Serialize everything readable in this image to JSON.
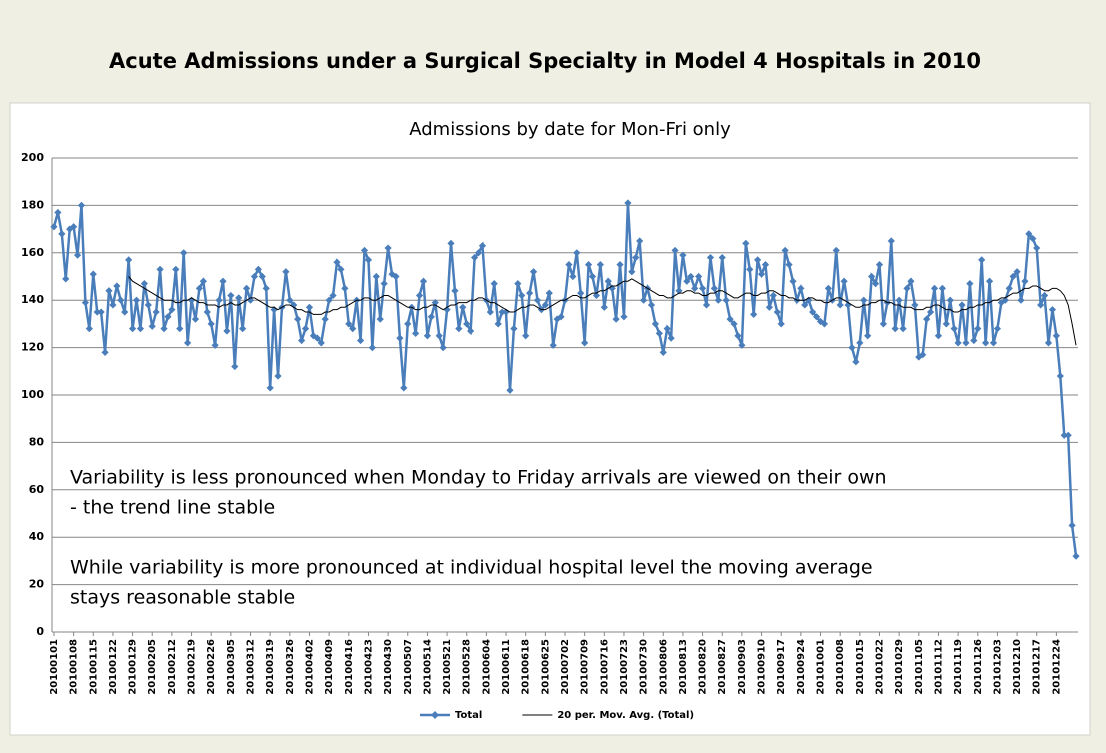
{
  "header": {
    "title": "Acute Admissions under a Surgical Specialty in Model 4 Hospitals in  2010"
  },
  "chart_data": {
    "type": "line",
    "title": "Admissions by date for Mon-Fri only",
    "annotations": [
      "Variability is less pronounced when Monday to Friday arrivals are viewed on their own",
      "- the trend line stable",
      "While variability is more pronounced at individual hospital level the moving average",
      "stays reasonable stable"
    ],
    "ylim": [
      0,
      200
    ],
    "yticks": [
      0,
      20,
      40,
      60,
      80,
      100,
      120,
      140,
      160,
      180,
      200
    ],
    "grid": true,
    "legend": "bottom",
    "categories": [
      "20100101",
      null,
      null,
      null,
      null,
      "20100108",
      null,
      null,
      null,
      null,
      "20100115",
      null,
      null,
      null,
      null,
      "20100122",
      null,
      null,
      null,
      null,
      "20100129",
      null,
      null,
      null,
      null,
      "20100205",
      null,
      null,
      null,
      null,
      "20100212",
      null,
      null,
      null,
      null,
      "20100219",
      null,
      null,
      null,
      null,
      "20100226",
      null,
      null,
      null,
      null,
      "20100305",
      null,
      null,
      null,
      null,
      "20100312",
      null,
      null,
      null,
      null,
      "20100319",
      null,
      null,
      null,
      null,
      "20100326",
      null,
      null,
      null,
      null,
      "20100402",
      null,
      null,
      null,
      null,
      "20100409",
      null,
      null,
      null,
      null,
      "20100416",
      null,
      null,
      null,
      null,
      "20100423",
      null,
      null,
      null,
      null,
      "20100430",
      null,
      null,
      null,
      null,
      "20100507",
      null,
      null,
      null,
      null,
      "20100514",
      null,
      null,
      null,
      null,
      "20100521",
      null,
      null,
      null,
      null,
      "20100528",
      null,
      null,
      null,
      null,
      "20100604",
      null,
      null,
      null,
      null,
      "20100611",
      null,
      null,
      null,
      null,
      "20100618",
      null,
      null,
      null,
      null,
      "20100625",
      null,
      null,
      null,
      null,
      "20100702",
      null,
      null,
      null,
      null,
      "20100709",
      null,
      null,
      null,
      null,
      "20100716",
      null,
      null,
      null,
      null,
      "20100723",
      null,
      null,
      null,
      null,
      "20100730",
      null,
      null,
      null,
      null,
      "20100806",
      null,
      null,
      null,
      null,
      "20100813",
      null,
      null,
      null,
      null,
      "20100820",
      null,
      null,
      null,
      null,
      "20100827",
      null,
      null,
      null,
      null,
      "20100903",
      null,
      null,
      null,
      null,
      "20100910",
      null,
      null,
      null,
      null,
      "20100917",
      null,
      null,
      null,
      null,
      "20100924",
      null,
      null,
      null,
      null,
      "20101001",
      null,
      null,
      null,
      null,
      "20101008",
      null,
      null,
      null,
      null,
      "20101015",
      null,
      null,
      null,
      null,
      "20101022",
      null,
      null,
      null,
      null,
      "20101029",
      null,
      null,
      null,
      null,
      "20101105",
      null,
      null,
      null,
      null,
      "20101112",
      null,
      null,
      null,
      null,
      "20101119",
      null,
      null,
      null,
      null,
      "20101126",
      null,
      null,
      null,
      null,
      "20101203",
      null,
      null,
      null,
      null,
      "20101210",
      null,
      null,
      null,
      null,
      "20101217",
      null,
      null,
      null,
      null,
      "20101224",
      null,
      null,
      null,
      null,
      null
    ],
    "series": [
      {
        "name": "Total",
        "color": "#4a7ebb",
        "marker": "diamond",
        "values": [
          171,
          177,
          168,
          149,
          170,
          171,
          159,
          180,
          139,
          128,
          151,
          135,
          135,
          118,
          144,
          138,
          146,
          140,
          135,
          157,
          128,
          140,
          128,
          147,
          138,
          129,
          135,
          153,
          128,
          133,
          136,
          153,
          128,
          160,
          122,
          140,
          132,
          145,
          148,
          135,
          130,
          121,
          140,
          148,
          127,
          142,
          112,
          141,
          128,
          145,
          140,
          150,
          153,
          150,
          145,
          103,
          136,
          108,
          137,
          152,
          140,
          138,
          132,
          123,
          128,
          137,
          125,
          124,
          122,
          132,
          140,
          142,
          156,
          153,
          145,
          130,
          128,
          140,
          123,
          161,
          157,
          120,
          150,
          132,
          147,
          162,
          151,
          150,
          124,
          103,
          130,
          137,
          126,
          142,
          148,
          125,
          133,
          139,
          125,
          120,
          136,
          164,
          144,
          128,
          137,
          130,
          127,
          158,
          160,
          163,
          140,
          135,
          147,
          130,
          135,
          135,
          102,
          128,
          147,
          142,
          125,
          143,
          152,
          140,
          136,
          138,
          143,
          121,
          132,
          133,
          140,
          155,
          150,
          160,
          143,
          122,
          155,
          150,
          142,
          155,
          137,
          148,
          145,
          132,
          155,
          133,
          181,
          152,
          158,
          165,
          140,
          145,
          138,
          130,
          126,
          118,
          128,
          124,
          161,
          144,
          159,
          148,
          150,
          145,
          150,
          145,
          138,
          158,
          145,
          140,
          158,
          140,
          132,
          130,
          125,
          121,
          164,
          153,
          134,
          157,
          151,
          155,
          137,
          142,
          135,
          130,
          161,
          155,
          148,
          140,
          145,
          138,
          140,
          135,
          133,
          131,
          130,
          145,
          140,
          161,
          138,
          148,
          138,
          120,
          114,
          122,
          140,
          125,
          150,
          147,
          155,
          130,
          139,
          165,
          128,
          140,
          128,
          145,
          148,
          138,
          116,
          117,
          132,
          135,
          145,
          125,
          145,
          130,
          140,
          128,
          122,
          138,
          122,
          147,
          123,
          128,
          157,
          122,
          148,
          122,
          128,
          139,
          140,
          145,
          150,
          152,
          140,
          148,
          168,
          166,
          162,
          138,
          142,
          122,
          136,
          125,
          108,
          83,
          83,
          45,
          32
        ]
      },
      {
        "name": "20 per. Mov. Avg. (Total)",
        "color": "#000000",
        "marker": "none",
        "values": [
          null,
          null,
          null,
          null,
          null,
          null,
          null,
          null,
          null,
          null,
          null,
          null,
          null,
          null,
          null,
          null,
          null,
          null,
          null,
          150,
          148,
          147,
          146,
          145,
          144,
          143,
          142,
          141,
          140,
          140,
          140,
          139,
          139,
          140,
          140,
          141,
          140,
          139,
          139,
          138,
          138,
          138,
          137,
          138,
          138,
          139,
          138,
          138,
          139,
          140,
          141,
          141,
          140,
          139,
          138,
          137,
          137,
          136,
          137,
          138,
          138,
          137,
          136,
          136,
          135,
          135,
          134,
          134,
          134,
          135,
          135,
          136,
          136,
          137,
          137,
          138,
          139,
          140,
          140,
          141,
          141,
          140,
          140,
          141,
          142,
          142,
          141,
          140,
          139,
          138,
          137,
          137,
          136,
          136,
          137,
          137,
          138,
          138,
          137,
          136,
          137,
          138,
          138,
          139,
          139,
          139,
          140,
          140,
          141,
          141,
          140,
          139,
          139,
          138,
          137,
          136,
          135,
          135,
          136,
          137,
          137,
          138,
          138,
          137,
          136,
          136,
          137,
          138,
          139,
          140,
          140,
          141,
          142,
          142,
          141,
          141,
          142,
          143,
          143,
          144,
          144,
          145,
          146,
          146,
          147,
          148,
          148,
          149,
          148,
          147,
          146,
          145,
          144,
          143,
          142,
          142,
          141,
          141,
          142,
          143,
          143,
          144,
          144,
          143,
          143,
          142,
          142,
          143,
          143,
          144,
          144,
          143,
          142,
          141,
          141,
          142,
          143,
          143,
          142,
          142,
          143,
          143,
          144,
          144,
          143,
          142,
          142,
          141,
          141,
          140,
          140,
          140,
          141,
          141,
          140,
          140,
          139,
          139,
          140,
          141,
          141,
          140,
          139,
          138,
          137,
          137,
          138,
          138,
          139,
          139,
          140,
          140,
          139,
          139,
          138,
          138,
          137,
          137,
          137,
          136,
          136,
          136,
          137,
          137,
          138,
          138,
          137,
          136,
          136,
          135,
          135,
          136,
          136,
          137,
          137,
          138,
          138,
          139,
          139,
          140,
          140,
          141,
          141,
          142,
          143,
          143,
          144,
          145,
          145,
          146,
          146,
          145,
          144,
          144,
          145,
          145,
          144,
          142,
          138,
          130,
          121
        ]
      }
    ]
  }
}
